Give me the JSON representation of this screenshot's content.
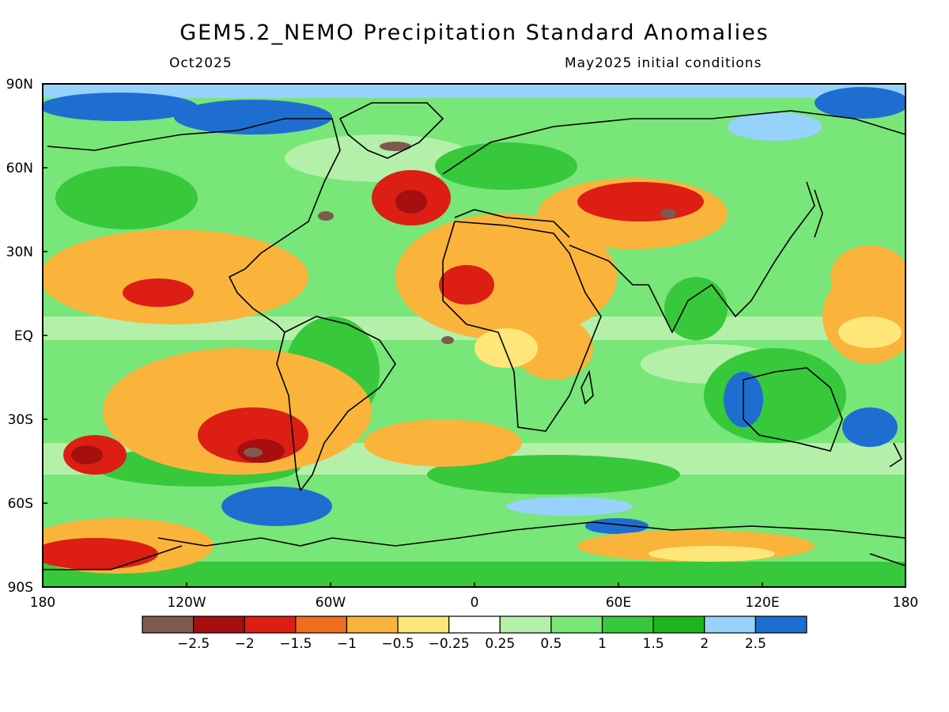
{
  "title": "GEM5.2_NEMO Precipitation Standard Anomalies",
  "valid_month": "Oct2025",
  "init_conditions": "May2025 initial conditions",
  "axes": {
    "lat_ticks": [
      "90N",
      "60N",
      "30N",
      "EQ",
      "30S",
      "60S",
      "90S"
    ],
    "lon_ticks": [
      "180",
      "120W",
      "60W",
      "0",
      "60E",
      "120E",
      "180"
    ]
  },
  "colorbar": {
    "colors": [
      "#7d5a4f",
      "#a50f0f",
      "#dc1e14",
      "#f06e1e",
      "#fab43c",
      "#ffe678",
      "#ffffff",
      "#b4f0aa",
      "#78e678",
      "#37c83c",
      "#1eb41e",
      "#96d2fa",
      "#1e6ed2"
    ],
    "labels": [
      "−2.5",
      "−2",
      "−1.5",
      "−1",
      "−0.5",
      "−0.25",
      "0.25",
      "0.5",
      "1",
      "1.5",
      "2",
      "2.5"
    ]
  }
}
